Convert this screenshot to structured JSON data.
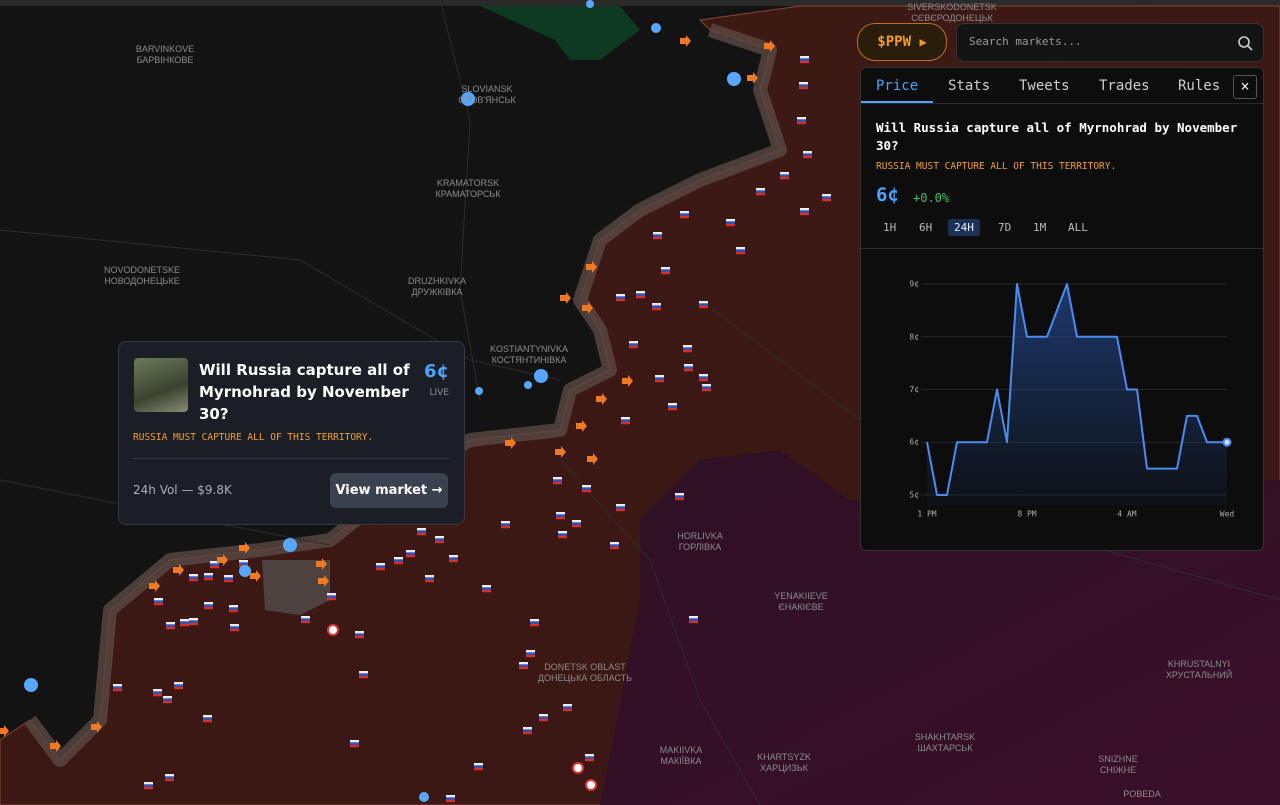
{
  "header": {
    "token": "$PPW",
    "search_placeholder": "Search markets..."
  },
  "map_labels": [
    {
      "name": "SIVERSKODONETSK",
      "native": "СЄВЄРОДОНЕЦЬК"
    },
    {
      "name": "BARVINKOVE",
      "native": "БАРВІНКОВЕ"
    },
    {
      "name": "SLOVIANSK",
      "native": "СЛОВ'ЯНСЬК"
    },
    {
      "name": "KRAMATORSK",
      "native": "КРАМАТОРСЬК"
    },
    {
      "name": "NOVODONETSKE",
      "native": "НОВОДОНЕЦЬКЕ"
    },
    {
      "name": "DRUZHKIVKA",
      "native": "ДРУЖКІВКА"
    },
    {
      "name": "KOSTIANTYNIVKA",
      "native": "КОСТЯНТИНІВКА"
    },
    {
      "name": "HORLIVKA",
      "native": "ГОРЛІВКА"
    },
    {
      "name": "YENAKIIEVE",
      "native": "ЄНАКІЄВЕ"
    },
    {
      "name": "DONETSK OBLAST",
      "native": "ДОНЕЦЬКА ОБЛАСТЬ"
    },
    {
      "name": "KHRUSTALNYI",
      "native": "ХРУСТАЛЬНИЙ"
    },
    {
      "name": "MAKIIVKA",
      "native": "МАКІЇВКА"
    },
    {
      "name": "KHARTSYZK",
      "native": "ХАРЦИЗЬК"
    },
    {
      "name": "SHAKHTARSK",
      "native": "ШАХТАРСЬК"
    },
    {
      "name": "SNIZHNE",
      "native": "СНІЖНЕ"
    },
    {
      "name": "POBEDA"
    }
  ],
  "market": {
    "question": "Will Russia capture all of Myrnohrad by November 30?",
    "note": "RUSSIA MUST CAPTURE ALL OF THIS TERRITORY.",
    "price": "6¢"
  },
  "popup": {
    "status": "LIVE",
    "volume": "24h Vol — $9.8K",
    "button": "View market →"
  },
  "panel": {
    "tabs": [
      "Price",
      "Stats",
      "Tweets",
      "Trades",
      "Rules"
    ],
    "active_tab": "Price",
    "close": "×",
    "change": "+0.0%",
    "ranges": [
      "1H",
      "6H",
      "24H",
      "7D",
      "1M",
      "ALL"
    ],
    "active_range": "24H"
  },
  "chart_data": {
    "type": "line",
    "categories": [
      "1 PM",
      null,
      null,
      null,
      null,
      null,
      null,
      null,
      null,
      null,
      "8 PM",
      null,
      null,
      null,
      null,
      null,
      null,
      null,
      null,
      null,
      "4 AM",
      null,
      null,
      null,
      null,
      null,
      null,
      null,
      null,
      null,
      "Wed"
    ],
    "values": [
      6,
      5,
      5,
      6,
      6,
      6,
      6,
      7,
      6,
      9,
      8,
      8,
      8,
      8.5,
      9,
      8,
      8,
      8,
      8,
      8,
      7,
      7,
      5.5,
      5.5,
      5.5,
      5.5,
      6.5,
      6.5,
      6,
      6,
      6
    ],
    "color": "#4a8cf0",
    "ylim": [
      4.8,
      9.2
    ],
    "yticks": [
      {
        "value": 5,
        "label": "5¢"
      },
      {
        "value": 6,
        "label": "6¢"
      },
      {
        "value": 7,
        "label": "7¢"
      },
      {
        "value": 8,
        "label": "8¢"
      },
      {
        "value": 9,
        "label": "9¢"
      }
    ],
    "grid": true
  }
}
